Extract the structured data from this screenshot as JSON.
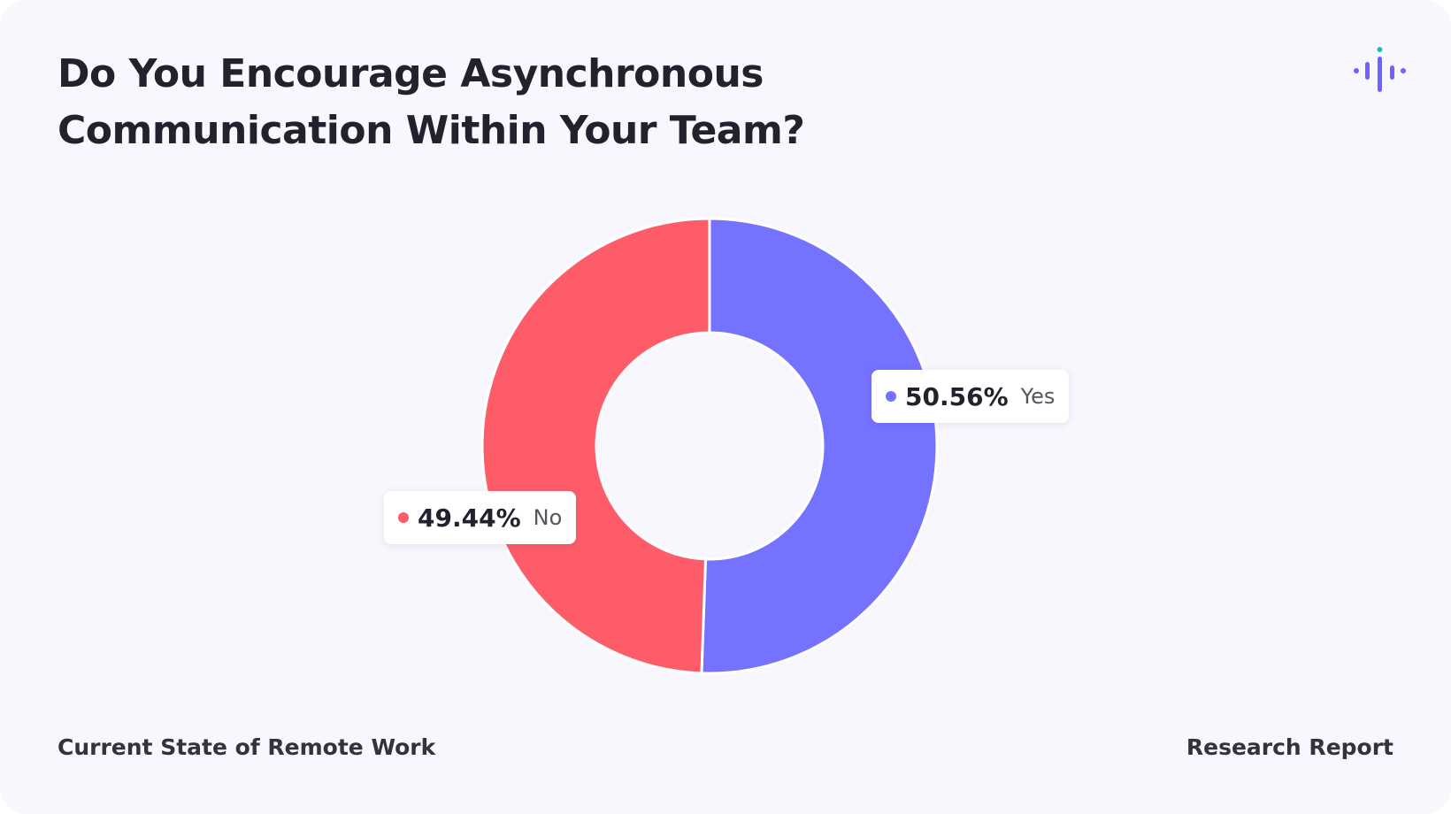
{
  "brand": {
    "logo_icon": "audio-waveform-icon",
    "logo_color": "#6c63ff",
    "logo_accent": "#19c3b4"
  },
  "chart_data": {
    "type": "pie",
    "title": "Do You Encourage Asynchronous Communication Within Your Team?",
    "categories": [
      "Yes",
      "No"
    ],
    "values": [
      50.56,
      49.44
    ],
    "labels": [
      "50.56%",
      "49.44%"
    ],
    "colors": [
      "#7572ff",
      "#ff5c6a"
    ],
    "donut": true
  },
  "footer": {
    "left": "Current State of Remote Work",
    "right": "Research Report"
  }
}
